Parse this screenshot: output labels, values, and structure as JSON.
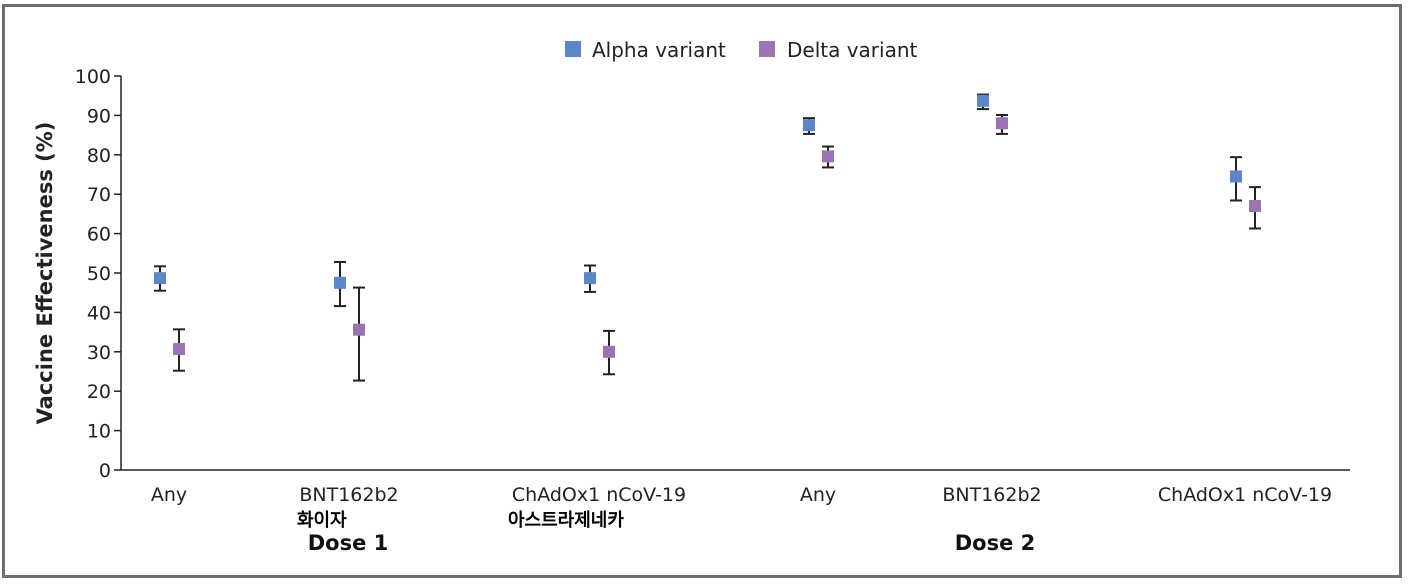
{
  "chart_data": {
    "type": "scatter",
    "ylabel": "Vaccine Effectiveness (%)",
    "xlabel": "",
    "ylim": [
      0,
      100
    ],
    "yticks": [
      0,
      10,
      20,
      30,
      40,
      50,
      60,
      70,
      80,
      90,
      100
    ],
    "grid": false,
    "legend_position": "top-center",
    "categories": [
      "Any",
      "BNT162b2",
      "ChAdOx1 nCoV-19",
      "Any",
      "BNT162b2",
      "ChAdOx1 nCoV-19"
    ],
    "category_notes": [
      "",
      "화이자",
      "아스트라제네카",
      "",
      "",
      ""
    ],
    "groups": [
      {
        "label": "Dose 1",
        "categories": [
          0,
          1,
          2
        ]
      },
      {
        "label": "Dose 2",
        "categories": [
          3,
          4,
          5
        ]
      }
    ],
    "series": [
      {
        "name": "Alpha variant",
        "color": "#5b86c9",
        "values": [
          48.7,
          47.5,
          48.7,
          87.5,
          93.7,
          74.5
        ],
        "ci_low": [
          45.5,
          41.6,
          45.2,
          85.3,
          91.6,
          68.4
        ],
        "ci_high": [
          51.7,
          52.8,
          51.9,
          89.3,
          95.3,
          79.4
        ]
      },
      {
        "name": "Delta variant",
        "color": "#9a73b3",
        "values": [
          30.7,
          35.6,
          30.0,
          79.6,
          88.0,
          67.0
        ],
        "ci_low": [
          25.2,
          22.7,
          24.3,
          76.8,
          85.3,
          61.3
        ],
        "ci_high": [
          35.7,
          46.3,
          35.3,
          82.1,
          90.1,
          71.8
        ]
      }
    ]
  }
}
